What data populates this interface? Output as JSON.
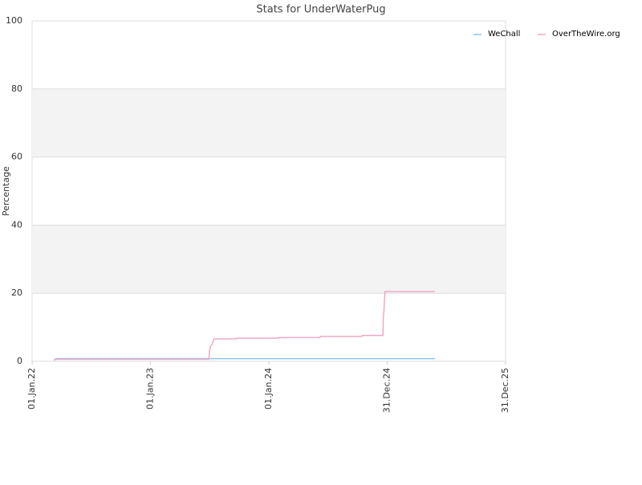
{
  "chart_data": {
    "type": "line",
    "title": "Stats for UnderWaterPug",
    "y_label": "Percentage",
    "xlim": [
      "2022-01-01",
      "2025-12-31"
    ],
    "xticks": [
      {
        "value": "2022-01-01",
        "label": "01.Jan.22"
      },
      {
        "value": "2023-01-01",
        "label": "01.Jan.23"
      },
      {
        "value": "2024-01-01",
        "label": "01.Jan.24"
      },
      {
        "value": "2024-12-31",
        "label": "31.Dec.24"
      },
      {
        "value": "2025-12-31",
        "label": "31.Dec.25"
      }
    ],
    "ylim": [
      0,
      100
    ],
    "yticks": [
      0,
      20,
      40,
      60,
      80,
      100
    ],
    "grid": true,
    "bands": true,
    "legend": "top-right",
    "series": [
      {
        "name": "WeChall",
        "color": "#8ec6ea",
        "x": [
          "2022-03-09",
          "2022-03-15",
          "2025-05-27"
        ],
        "values": [
          0.3,
          0.8,
          0.8
        ]
      },
      {
        "name": "OverTheWire.org",
        "color": "#f0a8c8",
        "x": [
          "2022-03-09",
          "2022-03-15",
          "2023-06-30",
          "2023-07-02",
          "2023-07-05",
          "2023-07-10",
          "2023-07-16",
          "2023-09-23",
          "2023-09-24",
          "2024-01-30",
          "2024-01-31",
          "2024-06-07",
          "2024-06-08",
          "2024-10-14",
          "2024-10-15",
          "2024-12-18",
          "2024-12-19",
          "2024-12-21",
          "2024-12-24",
          "2025-05-27"
        ],
        "values": [
          0.3,
          0.6,
          0.6,
          3,
          4.5,
          5,
          6.6,
          6.6,
          6.8,
          6.8,
          7.0,
          7.0,
          7.3,
          7.3,
          7.6,
          7.6,
          13,
          15,
          20.5,
          20.5
        ]
      }
    ]
  }
}
